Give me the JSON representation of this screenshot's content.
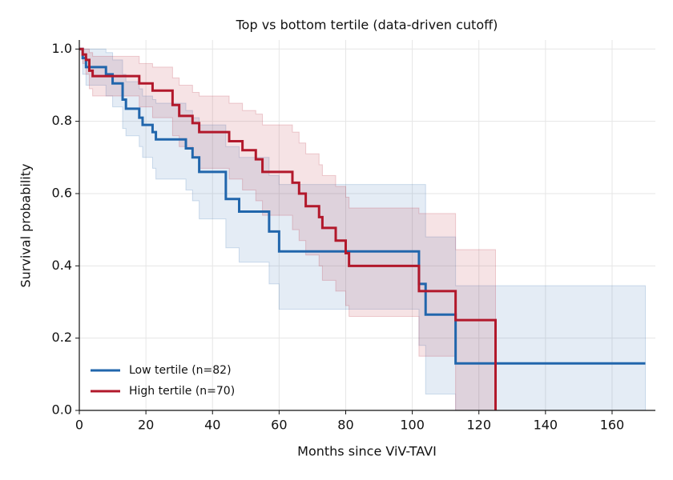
{
  "chart_data": {
    "type": "step",
    "title": "Top vs bottom tertile (data-driven cutoff)",
    "x_label": "Months since ViV-TAVI",
    "y_label": "Survival probability",
    "xlim": [
      0,
      173
    ],
    "ylim": [
      0,
      1.025
    ],
    "xticks": [
      0,
      20,
      40,
      60,
      80,
      100,
      120,
      140,
      160
    ],
    "yticks": [
      {
        "value": 0,
        "label": "0.0"
      },
      {
        "value": 0.2,
        "label": "0.2"
      },
      {
        "value": 0.4,
        "label": "0.4"
      },
      {
        "value": 0.6,
        "label": "0.6"
      },
      {
        "value": 0.8,
        "label": "0.8"
      },
      {
        "value": 1,
        "label": "1.0"
      }
    ],
    "grid": true,
    "legend": "lower left",
    "series": [
      {
        "name": "Low tertile (n=82)",
        "color": "#2166ac",
        "x": [
          0,
          1,
          2,
          8,
          10,
          13,
          14,
          18,
          19,
          22,
          23,
          32,
          34,
          36,
          44,
          48,
          57,
          60,
          102,
          104,
          113,
          170
        ],
        "values": [
          1.0,
          0.975,
          0.95,
          0.93,
          0.905,
          0.86,
          0.835,
          0.81,
          0.79,
          0.77,
          0.75,
          0.725,
          0.7,
          0.66,
          0.585,
          0.55,
          0.495,
          0.44,
          0.35,
          0.265,
          0.13,
          0.13
        ],
        "ci_lower": [
          1.0,
          0.93,
          0.9,
          0.87,
          0.84,
          0.78,
          0.76,
          0.73,
          0.7,
          0.67,
          0.64,
          0.61,
          0.58,
          0.53,
          0.45,
          0.41,
          0.35,
          0.28,
          0.18,
          0.045,
          0.0,
          0.0
        ],
        "ci_upper": [
          1.0,
          1.0,
          1.0,
          0.99,
          0.97,
          0.93,
          0.91,
          0.89,
          0.87,
          0.86,
          0.85,
          0.83,
          0.81,
          0.79,
          0.73,
          0.7,
          0.65,
          0.625,
          0.625,
          0.48,
          0.345,
          0.345
        ]
      },
      {
        "name": "High tertile (n=70)",
        "color": "#b2182b",
        "x": [
          0,
          1,
          2,
          3,
          4,
          18,
          22,
          28,
          30,
          34,
          36,
          45,
          49,
          53,
          55,
          64,
          66,
          68,
          72,
          73,
          77,
          80,
          81,
          102,
          113,
          125
        ],
        "values": [
          1.0,
          0.985,
          0.97,
          0.94,
          0.925,
          0.905,
          0.885,
          0.845,
          0.815,
          0.795,
          0.77,
          0.745,
          0.72,
          0.695,
          0.66,
          0.63,
          0.6,
          0.565,
          0.535,
          0.505,
          0.47,
          0.435,
          0.4,
          0.33,
          0.25,
          0.0
        ],
        "ci_lower": [
          1.0,
          0.96,
          0.93,
          0.89,
          0.87,
          0.84,
          0.81,
          0.76,
          0.73,
          0.7,
          0.67,
          0.64,
          0.61,
          0.58,
          0.54,
          0.5,
          0.47,
          0.43,
          0.4,
          0.36,
          0.33,
          0.29,
          0.26,
          0.15,
          0.0,
          0.0
        ],
        "ci_upper": [
          1.0,
          1.0,
          1.0,
          0.99,
          0.98,
          0.96,
          0.95,
          0.92,
          0.9,
          0.88,
          0.87,
          0.85,
          0.83,
          0.82,
          0.79,
          0.77,
          0.74,
          0.71,
          0.68,
          0.65,
          0.62,
          0.59,
          0.56,
          0.545,
          0.445,
          0.445
        ]
      }
    ]
  }
}
